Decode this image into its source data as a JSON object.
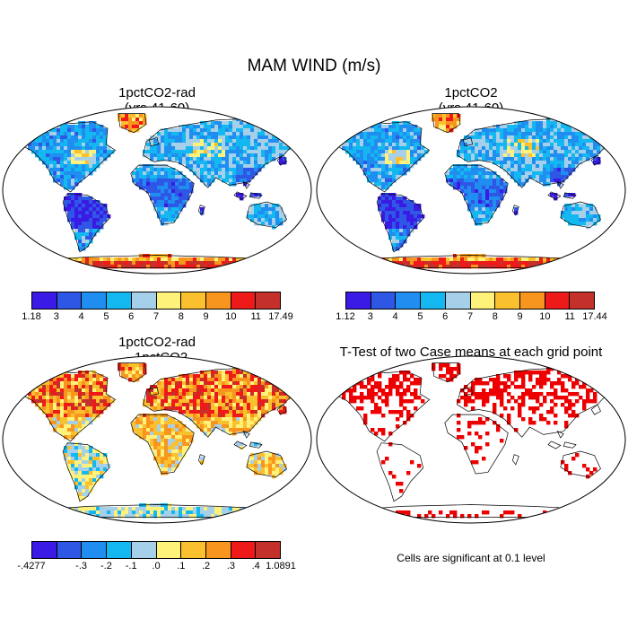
{
  "figure_title": "MAM WIND (m/s)",
  "panels": [
    {
      "title": "1pctCO2-rad\n(yrs 41-60)",
      "kind": "field",
      "colorbar": {
        "colors": [
          "#3a1be6",
          "#2f57e6",
          "#1f8ef0",
          "#13b8f0",
          "#a6cfea",
          "#fff27a",
          "#fbc02d",
          "#f7951f",
          "#ee1a1a",
          "#c4302a"
        ],
        "labels": [
          "1.18",
          "3",
          "4",
          "5",
          "6",
          "7",
          "8",
          "9",
          "10",
          "11",
          "17.49"
        ]
      }
    },
    {
      "title": "1pctCO2\n(yrs 41-60)",
      "kind": "field",
      "colorbar": {
        "colors": [
          "#3a1be6",
          "#2f57e6",
          "#1f8ef0",
          "#13b8f0",
          "#a6cfea",
          "#fff27a",
          "#fbc02d",
          "#f7951f",
          "#ee1a1a",
          "#c4302a"
        ],
        "labels": [
          "1.12",
          "3",
          "4",
          "5",
          "6",
          "7",
          "8",
          "9",
          "10",
          "11",
          "17.44"
        ]
      }
    },
    {
      "title": "1pctCO2-rad\n- 1pctCO2",
      "kind": "difference",
      "colorbar": {
        "colors": [
          "#3a1be6",
          "#2f57e6",
          "#1f8ef0",
          "#13b8f0",
          "#a6cfea",
          "#fff27a",
          "#fbc02d",
          "#f7951f",
          "#ee1a1a",
          "#c4302a"
        ],
        "labels": [
          "-.4277",
          "-.3",
          "-.2",
          "-.1",
          ".0",
          ".1",
          ".2",
          ".3",
          ".4",
          "1.0891"
        ]
      }
    },
    {
      "title": "T-Test of two Case means at each grid point",
      "kind": "significance",
      "significant_color": "#ee0000"
    }
  ],
  "significance_note": "Cells are significant at 0.1 level"
}
